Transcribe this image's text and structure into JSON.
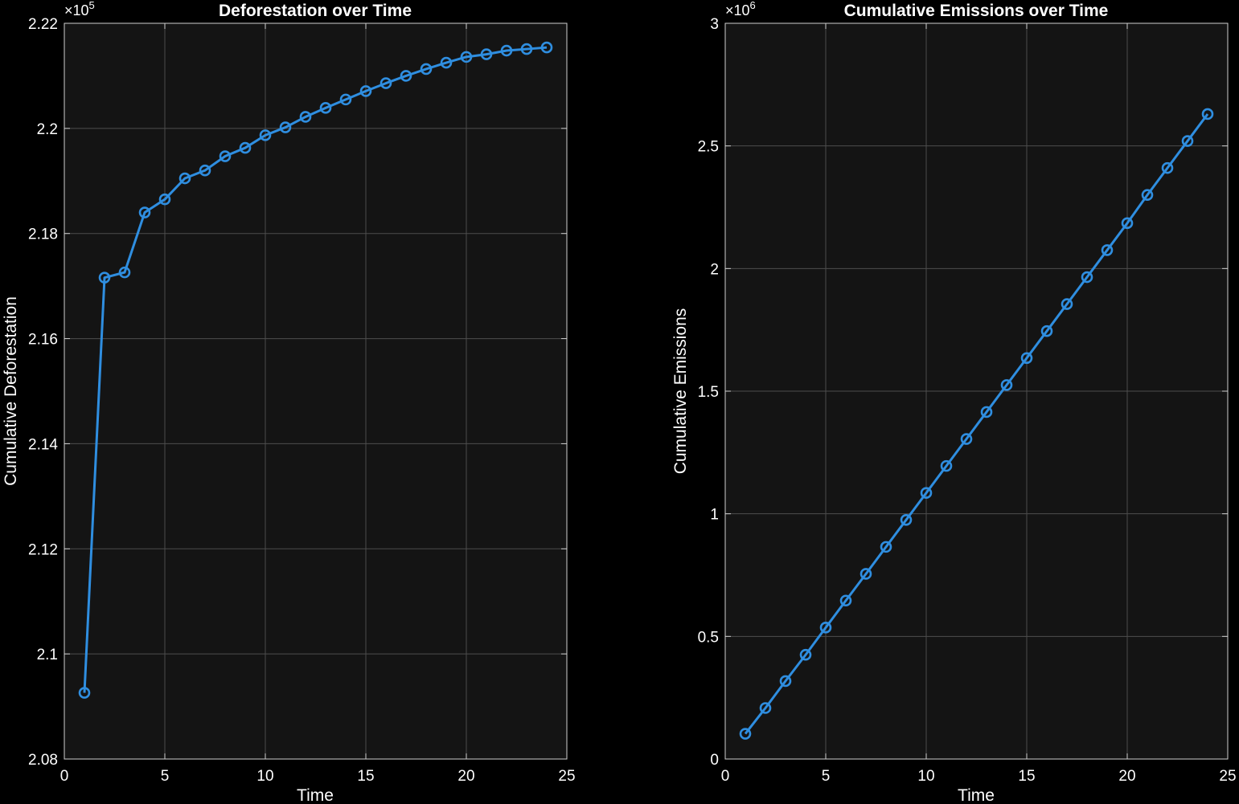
{
  "colors": {
    "figure_background": "#000000",
    "axes_background": "#141414",
    "grid": "#4d4d4d",
    "axis_line": "#cfcfcf",
    "text": "#ffffff",
    "series": "#2f8ee0"
  },
  "chart_data": [
    {
      "type": "line",
      "title": "Deforestation over Time",
      "xlabel": "Time",
      "ylabel": "Cumulative Deforestation",
      "y_exponent_base": "×10",
      "y_exponent_power": "5",
      "xlim": [
        0,
        25
      ],
      "ylim": [
        2.08,
        2.22
      ],
      "xticks": [
        0,
        5,
        10,
        15,
        20,
        25
      ],
      "xtick_labels": [
        "0",
        "5",
        "10",
        "15",
        "20",
        "25"
      ],
      "yticks": [
        2.08,
        2.1,
        2.12,
        2.14,
        2.16,
        2.18,
        2.2,
        2.22
      ],
      "ytick_labels": [
        "2.08",
        "2.1",
        "2.12",
        "2.14",
        "2.16",
        "2.18",
        "2.2",
        "2.22"
      ],
      "grid": true,
      "marker": "circle",
      "x": [
        1,
        2,
        3,
        4,
        5,
        6,
        7,
        8,
        9,
        10,
        11,
        12,
        13,
        14,
        15,
        16,
        17,
        18,
        19,
        20,
        21,
        22,
        23,
        24
      ],
      "series": [
        {
          "values": [
            2.0926,
            2.1716,
            2.1726,
            2.184,
            2.1865,
            2.1905,
            2.192,
            2.1947,
            2.1963,
            2.1987,
            2.2002,
            2.2022,
            2.2039,
            2.2055,
            2.2071,
            2.2086,
            2.21,
            2.2113,
            2.2125,
            2.2136,
            2.2141,
            2.2148,
            2.2151,
            2.2154
          ]
        }
      ]
    },
    {
      "type": "line",
      "title": "Cumulative Emissions over Time",
      "xlabel": "Time",
      "ylabel": "Cumulative Emissions",
      "y_exponent_base": "×10",
      "y_exponent_power": "6",
      "xlim": [
        0,
        25
      ],
      "ylim": [
        0,
        3
      ],
      "xticks": [
        0,
        5,
        10,
        15,
        20,
        25
      ],
      "xtick_labels": [
        "0",
        "5",
        "10",
        "15",
        "20",
        "25"
      ],
      "yticks": [
        0,
        0.5,
        1,
        1.5,
        2,
        2.5,
        3
      ],
      "ytick_labels": [
        "0",
        "0.5",
        "1",
        "1.5",
        "2",
        "2.5",
        "3"
      ],
      "grid": true,
      "marker": "circle",
      "x": [
        1,
        2,
        3,
        4,
        5,
        6,
        7,
        8,
        9,
        10,
        11,
        12,
        13,
        14,
        15,
        16,
        17,
        18,
        19,
        20,
        21,
        22,
        23,
        24
      ],
      "series": [
        {
          "values": [
            0.103,
            0.208,
            0.318,
            0.425,
            0.536,
            0.646,
            0.755,
            0.865,
            0.975,
            1.085,
            1.195,
            1.305,
            1.415,
            1.525,
            1.635,
            1.745,
            1.855,
            1.965,
            2.075,
            2.185,
            2.3,
            2.41,
            2.52,
            2.63
          ]
        }
      ]
    }
  ]
}
